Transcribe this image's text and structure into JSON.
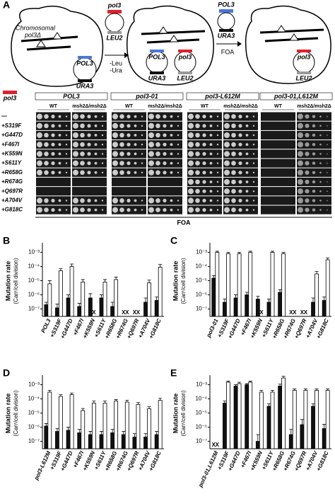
{
  "panel_a": {
    "label": "A",
    "diagram": {
      "plasmid_top": "pol3",
      "plasmid_top_marker": "LEU2",
      "chromosomal": "Chromosomal",
      "chromosomal_gene": "pol3Δ",
      "cell1_plasmid": "POL3",
      "cell1_marker": "URA3",
      "step1": [
        "-Leu",
        "-Ura"
      ],
      "cell2_plasmid1": "POL3",
      "cell2_marker1": "URA3",
      "cell2_plasmid2": "pol3",
      "cell2_marker2": "LEU2",
      "step2_plasmid": "POL3",
      "step2_marker": "URA3",
      "step2": "FOA",
      "cell3_plasmid": "pol3",
      "cell3_marker": "LEU2"
    },
    "plates": {
      "legend": "pol3",
      "groups": [
        "POL3",
        "pol3-01",
        "pol3-L612M",
        "pol3-01,L612M"
      ],
      "subgroups": [
        "WT",
        "msh2Δ/msh2Δ"
      ],
      "rows": [
        "—",
        "+S319F",
        "+G447D",
        "+F467I",
        "+K559N",
        "+S611Y",
        "+R658G",
        "+R674G",
        "+Q697R",
        "+A704V",
        "+G818C"
      ],
      "footer": "FOA"
    }
  },
  "chart_data": [
    {
      "type": "bar",
      "panel": "B",
      "ylabel": [
        "Mutation rate",
        "(Canʳ/cell division)"
      ],
      "ylog": true,
      "ylim": [
        3e-08,
        0.003
      ],
      "yticks": [
        {
          "value": 0.001,
          "label": "10⁻³"
        },
        {
          "value": 0.0001,
          "label": "10⁻⁴"
        },
        {
          "value": 1e-05,
          "label": "10⁻⁵"
        },
        {
          "value": 1e-06,
          "label": "10⁻⁶"
        },
        {
          "value": 1e-07,
          "label": "10⁻⁷"
        }
      ],
      "categories": [
        "POL3",
        "+S319F",
        "+G447D",
        "+F467I",
        "+K559N",
        "+S611Y",
        "+R658G",
        "+R674G",
        "+Q697R",
        "+A704V",
        "+G818C"
      ],
      "series": [
        {
          "color": "#111111",
          "values": [
            2e-07,
            1.2e-07,
            6e-07,
            1.5e-07,
            6e-07,
            6e-07,
            1.5e-07,
            null,
            null,
            3e-07,
            4e-07
          ],
          "errors": [
            1e-07,
            1e-07,
            4e-07,
            1e-07,
            6e-07,
            4e-07,
            1.5e-07,
            null,
            null,
            3e-07,
            3e-07
          ],
          "value_labels": [
            null,
            null,
            null,
            null,
            null,
            null,
            null,
            "X",
            "X",
            null,
            null
          ]
        },
        {
          "color": "#ffffff",
          "values": [
            6e-06,
            5e-05,
            0.0001,
            8e-06,
            null,
            8e-06,
            1.2e-05,
            null,
            null,
            7e-06,
            9e-05
          ],
          "errors": [
            4e-06,
            2e-05,
            5e-05,
            4e-06,
            null,
            4e-06,
            6e-06,
            null,
            null,
            4e-06,
            5e-05
          ],
          "value_labels": [
            null,
            null,
            null,
            null,
            "X",
            null,
            null,
            "X",
            "X",
            null,
            null
          ]
        }
      ]
    },
    {
      "type": "bar",
      "panel": "C",
      "ylabel": [
        "Mutation rate",
        "(Canʳ/cell division)"
      ],
      "ylog": true,
      "ylim": [
        3e-08,
        0.003
      ],
      "yticks": [
        {
          "value": 0.001,
          "label": "10⁻³"
        },
        {
          "value": 0.0001,
          "label": "10⁻⁴"
        },
        {
          "value": 1e-05,
          "label": "10⁻⁵"
        },
        {
          "value": 1e-06,
          "label": "10⁻⁶"
        },
        {
          "value": 1e-07,
          "label": "10⁻⁷"
        }
      ],
      "categories": [
        "pol3-01",
        "+S319F",
        "+G447D",
        "+F467I",
        "+K559N",
        "+S611Y",
        "+R658G",
        "+R674G",
        "+Q697R",
        "+A704V",
        "+G818C"
      ],
      "series": [
        {
          "color": "#111111",
          "values": [
            1.5e-05,
            3e-07,
            6e-07,
            1e-06,
            5e-07,
            3e-07,
            1.5e-06,
            null,
            null,
            3e-07,
            4e-07
          ],
          "errors": [
            8e-06,
            2e-07,
            4e-07,
            5e-07,
            3e-07,
            2e-07,
            8e-07,
            null,
            null,
            3e-07,
            3e-07
          ],
          "value_labels": [
            null,
            null,
            null,
            null,
            null,
            null,
            null,
            "X",
            "X",
            null,
            null
          ]
        },
        {
          "color": "#ffffff",
          "values": [
            0.001,
            0.0008,
            0.0008,
            0.001,
            null,
            0.001,
            0.0008,
            null,
            null,
            3e-05,
            0.0003
          ],
          "errors": [
            0.0002,
            0.0002,
            0.0002,
            0.0002,
            null,
            0.0002,
            0.0002,
            null,
            null,
            1.5e-05,
            0.0001
          ],
          "value_labels": [
            null,
            null,
            null,
            null,
            "X",
            null,
            null,
            "X",
            "X",
            null,
            null
          ]
        }
      ]
    },
    {
      "type": "bar",
      "panel": "D",
      "ylabel": [
        "Mutation rate",
        "(Canʳ/cell division)"
      ],
      "ylog": true,
      "ylim": [
        3e-08,
        0.003
      ],
      "yticks": [
        {
          "value": 0.001,
          "label": "10⁻³"
        },
        {
          "value": 0.0001,
          "label": "10⁻⁴"
        },
        {
          "value": 1e-05,
          "label": "10⁻⁵"
        },
        {
          "value": 1e-06,
          "label": "10⁻⁶"
        },
        {
          "value": 1e-07,
          "label": "10⁻⁷"
        }
      ],
      "categories": [
        "pol3-L612M",
        "+S319F",
        "+G447D",
        "+F467I",
        "+K559N",
        "+S611Y",
        "+R658G",
        "+R674G",
        "+Q697R",
        "+A704V",
        "+G818C"
      ],
      "series": [
        {
          "color": "#111111",
          "values": [
            1.2e-06,
            5e-07,
            6e-07,
            4e-07,
            3e-07,
            3e-07,
            4e-07,
            3e-07,
            2e-07,
            2e-07,
            3e-07
          ],
          "errors": [
            6e-07,
            3e-07,
            4e-07,
            3e-07,
            2e-07,
            2e-07,
            3e-07,
            2e-07,
            1.5e-07,
            1.5e-07,
            2e-07
          ]
        },
        {
          "color": "#ffffff",
          "values": [
            0.0003,
            0.00015,
            0.0002,
            1.5e-05,
            5e-05,
            5e-05,
            7e-05,
            6e-05,
            4e-05,
            2e-05,
            8e-05
          ],
          "errors": [
            0.0001,
            5e-05,
            6e-05,
            6e-06,
            2e-05,
            2e-05,
            2e-05,
            2e-05,
            1.5e-05,
            8e-06,
            3e-05
          ]
        }
      ]
    },
    {
      "type": "bar",
      "panel": "E",
      "ylabel": [
        "Mutation rate",
        "(Canʳ/cell division)"
      ],
      "ylog": true,
      "ylim": [
        3e-08,
        0.003
      ],
      "yticks": [
        {
          "value": 0.001,
          "label": "10⁻³"
        },
        {
          "value": 0.0001,
          "label": "10⁻⁴"
        },
        {
          "value": 1e-05,
          "label": "10⁻⁵"
        },
        {
          "value": 1e-06,
          "label": "10⁻⁶"
        },
        {
          "value": 1e-07,
          "label": "10⁻⁷"
        }
      ],
      "categories": [
        "pol3-01,L612M",
        "+S319F",
        "+G447D",
        "+F467I",
        "+K559N",
        "+S611Y",
        "+R658G",
        "+R674G",
        "+Q697R",
        "+A704V",
        "+G818C"
      ],
      "series": [
        {
          "color": "#111111",
          "values": [
            null,
            5e-05,
            0.0008,
            0.001,
            1e-07,
            3e-05,
            0.0008,
            3e-07,
            1.5e-06,
            3e-05,
            8e-07
          ],
          "errors": [
            null,
            2e-05,
            0.0002,
            0.0002,
            2e-07,
            1.5e-05,
            0.0003,
            4e-07,
            2e-06,
            1.5e-05,
            8e-07
          ],
          "value_labels": [
            "X",
            null,
            null,
            null,
            null,
            null,
            null,
            null,
            null,
            null,
            null
          ]
        },
        {
          "color": "#ffffff",
          "values": [
            null,
            0.0015,
            0.0012,
            0.0015,
            0.0003,
            0.0003,
            0.003,
            0.0004,
            0.0004,
            0.0004,
            0.0004
          ],
          "errors": [
            null,
            0.0003,
            0.0003,
            0.0003,
            0.0001,
            0.0001,
            0.001,
            0.0001,
            0.0001,
            0.0001,
            0.0001
          ],
          "value_labels": [
            "X",
            null,
            null,
            null,
            null,
            null,
            null,
            null,
            null,
            null,
            null
          ]
        }
      ]
    }
  ]
}
